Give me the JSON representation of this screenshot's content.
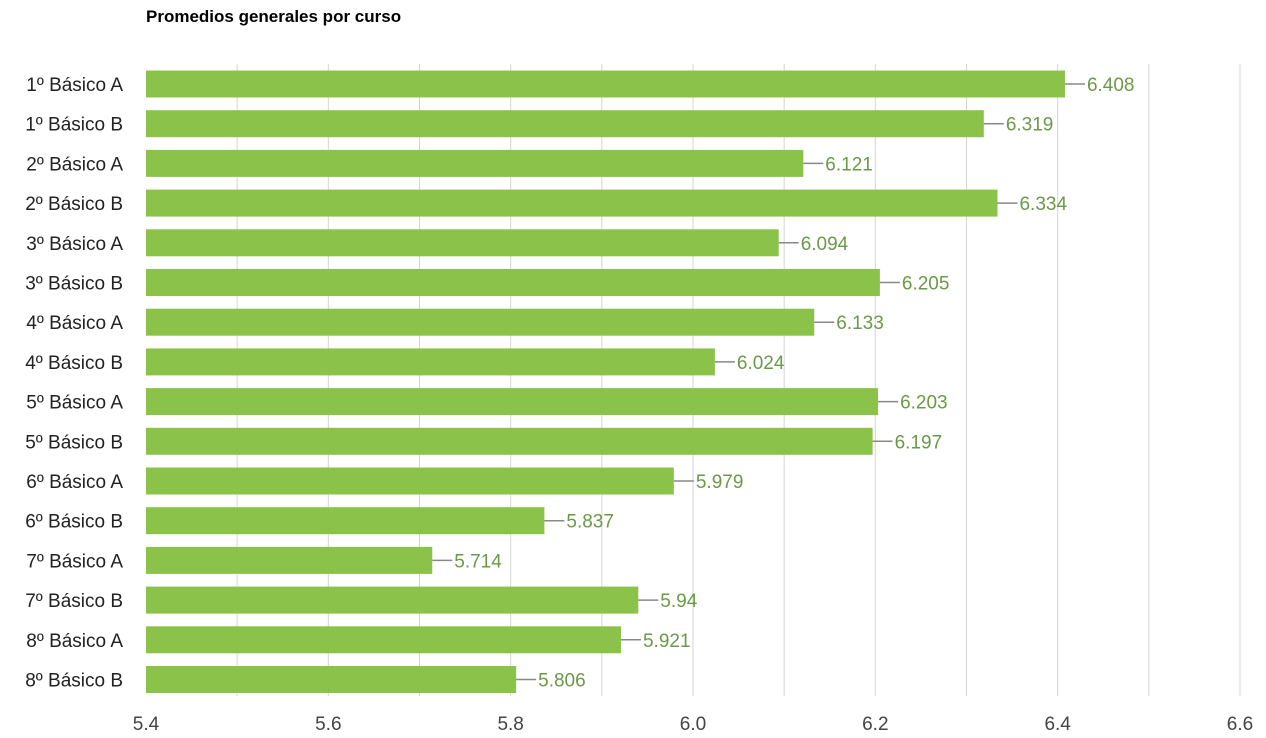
{
  "chart_data": {
    "type": "bar",
    "orientation": "horizontal",
    "title": "Promedios generales por curso",
    "categories": [
      "1º Básico A",
      "1º Básico B",
      "2º Básico A",
      "2º Básico B",
      "3º Básico A",
      "3º Básico B",
      "4º Básico A",
      "4º Básico B",
      "5º Básico A",
      "5º Básico B",
      "6º Básico A",
      "6º Básico B",
      "7º Básico A",
      "7º Básico B",
      "8º Básico A",
      "8º Básico B"
    ],
    "values": [
      6.408,
      6.319,
      6.121,
      6.334,
      6.094,
      6.205,
      6.133,
      6.024,
      6.203,
      6.197,
      5.979,
      5.837,
      5.714,
      5.94,
      5.921,
      5.806
    ],
    "value_labels": [
      "6.408",
      "6.319",
      "6.121",
      "6.334",
      "6.094",
      "6.205",
      "6.133",
      "6.024",
      "6.203",
      "6.197",
      "5.979",
      "5.837",
      "5.714",
      "5.94",
      "5.921",
      "5.806"
    ],
    "xlim": [
      5.4,
      6.6
    ],
    "tick_values": [
      5.4,
      5.6,
      5.8,
      6.0,
      6.2,
      6.4,
      6.6
    ],
    "tick_labels": [
      "5.4",
      "5.6",
      "5.8",
      "6.0",
      "6.2",
      "6.4",
      "6.6"
    ],
    "minor_gridline_step": 0.1,
    "grid": true,
    "legend": "none",
    "colors": {
      "bar": "#8bc34a",
      "value_label": "#6a9a47",
      "leader_line": "#888888",
      "gridline": "#d4d4d4"
    }
  }
}
